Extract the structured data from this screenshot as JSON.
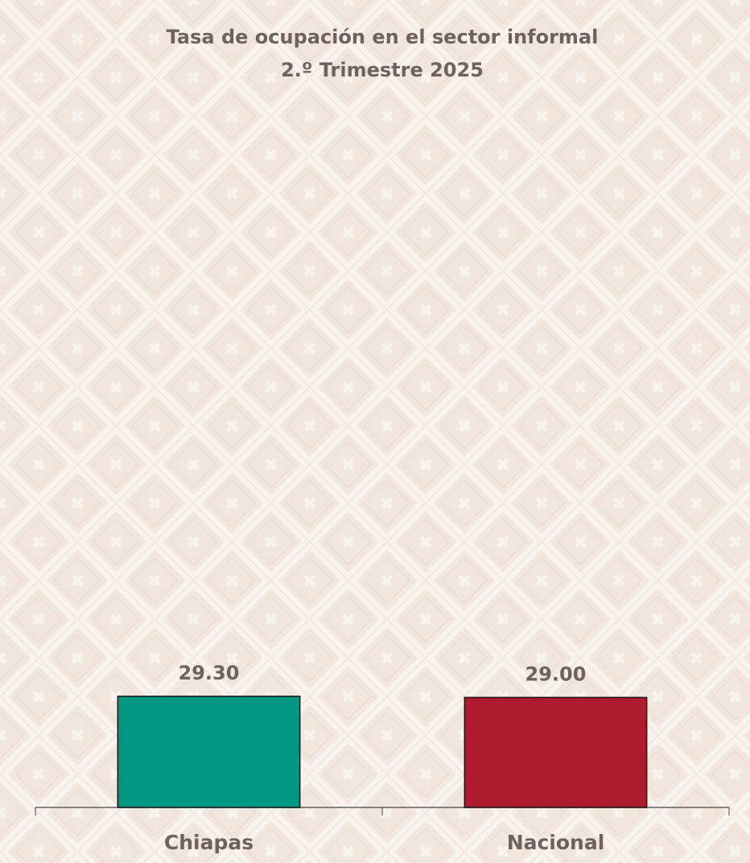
{
  "chart_data": {
    "type": "bar",
    "title": "Tasa de ocupación en el sector informal",
    "subtitle": "2.º Trimestre 2025",
    "categories": [
      "Chiapas",
      "Nacional"
    ],
    "values": [
      29.3,
      29.0
    ],
    "value_labels": [
      "29.30",
      "29.00"
    ],
    "colors": [
      "#009883",
      "#ae1a2e"
    ],
    "ylim": [
      0,
      180
    ]
  }
}
